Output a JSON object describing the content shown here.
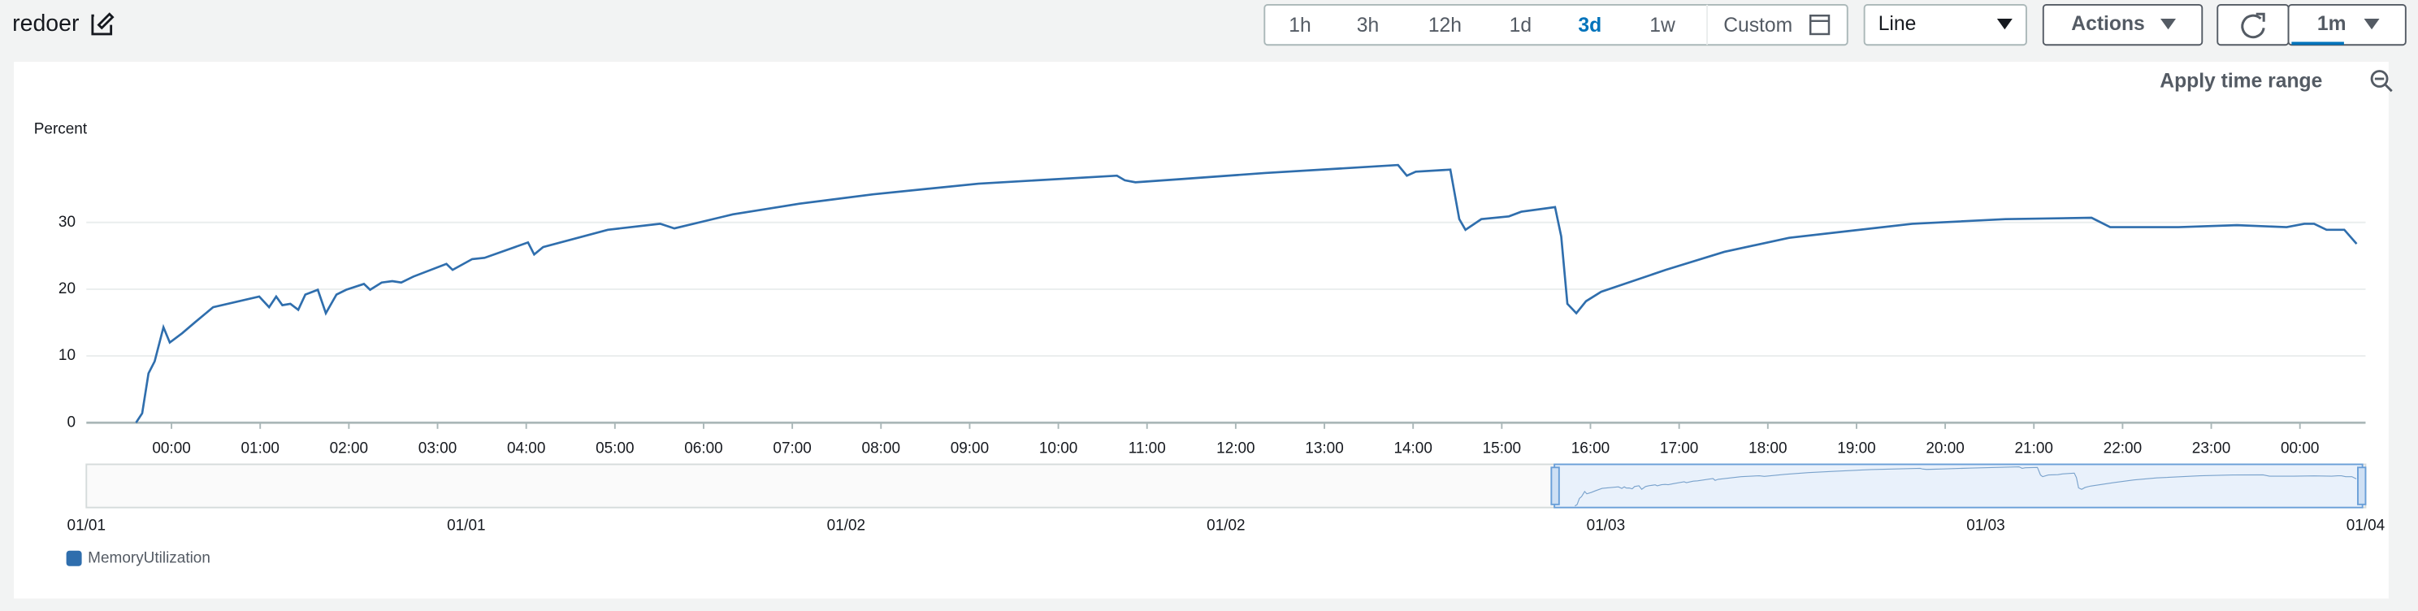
{
  "header": {
    "title": "redoer"
  },
  "toolbar": {
    "ranges": [
      "1h",
      "3h",
      "12h",
      "1d",
      "3d",
      "1w"
    ],
    "selected_range": "3d",
    "custom": "Custom",
    "view": "Line",
    "actions": "Actions",
    "refresh_interval": "1m"
  },
  "chart_data": {
    "type": "line",
    "apply_label": "Apply time range",
    "y_label": "Percent",
    "x": [
      -0.4,
      -0.33,
      -0.26,
      -0.19,
      -0.09,
      -0.02,
      0.12,
      0.26,
      0.47,
      0.99,
      1.1,
      1.18,
      1.25,
      1.34,
      1.43,
      1.51,
      1.65,
      1.74,
      1.86,
      1.97,
      2.17,
      2.24,
      2.37,
      2.49,
      2.59,
      2.73,
      3.1,
      3.17,
      3.39,
      3.53,
      4.02,
      4.09,
      4.19,
      4.92,
      5.51,
      5.67,
      6.33,
      7.08,
      7.91,
      9.1,
      10.66,
      10.75,
      10.87,
      11.39,
      12.33,
      13.83,
      13.93,
      14.03,
      14.42,
      14.52,
      14.59,
      14.77,
      15.08,
      15.22,
      15.6,
      15.67,
      15.74,
      15.84,
      15.95,
      16.12,
      16.85,
      17.51,
      18.24,
      19.63,
      20.68,
      21.65,
      21.86,
      22.63,
      23.29,
      23.85,
      24.05,
      24.16,
      24.3,
      24.5,
      24.64
    ],
    "series": [
      {
        "name": "MemoryUtilization",
        "color": "#2f6ead",
        "values": [
          0,
          1.4,
          7.4,
          9.2,
          14.3,
          12,
          13.4,
          15,
          17.3,
          18.9,
          17.3,
          18.9,
          17.6,
          17.8,
          16.9,
          19.2,
          19.9,
          16.4,
          19.2,
          19.9,
          20.8,
          19.9,
          21,
          21.2,
          21,
          21.9,
          23.8,
          22.9,
          24.5,
          24.7,
          27,
          25.2,
          26.3,
          28.9,
          29.8,
          29.1,
          31.2,
          32.8,
          34.2,
          35.8,
          37,
          36.3,
          36,
          36.5,
          37.4,
          38.6,
          37,
          37.6,
          37.9,
          30.5,
          28.9,
          30.5,
          30.9,
          31.6,
          32.3,
          27.9,
          17.8,
          16.4,
          18.2,
          19.6,
          22.9,
          25.6,
          27.7,
          29.8,
          30.5,
          30.7,
          29.3,
          29.3,
          29.6,
          29.3,
          29.8,
          29.8,
          28.9,
          28.9,
          26.8
        ]
      }
    ],
    "xlim": [
      -0.96,
      24.74
    ],
    "xticks": [
      {
        "value": 0,
        "label": "00:00"
      },
      {
        "value": 1,
        "label": "01:00"
      },
      {
        "value": 2,
        "label": "02:00"
      },
      {
        "value": 3,
        "label": "03:00"
      },
      {
        "value": 4,
        "label": "04:00"
      },
      {
        "value": 5,
        "label": "05:00"
      },
      {
        "value": 6,
        "label": "06:00"
      },
      {
        "value": 7,
        "label": "07:00"
      },
      {
        "value": 8,
        "label": "08:00"
      },
      {
        "value": 9,
        "label": "09:00"
      },
      {
        "value": 10,
        "label": "10:00"
      },
      {
        "value": 11,
        "label": "11:00"
      },
      {
        "value": 12,
        "label": "12:00"
      },
      {
        "value": 13,
        "label": "13:00"
      },
      {
        "value": 14,
        "label": "14:00"
      },
      {
        "value": 15,
        "label": "15:00"
      },
      {
        "value": 16,
        "label": "16:00"
      },
      {
        "value": 17,
        "label": "17:00"
      },
      {
        "value": 18,
        "label": "18:00"
      },
      {
        "value": 19,
        "label": "19:00"
      },
      {
        "value": 20,
        "label": "20:00"
      },
      {
        "value": 21,
        "label": "21:00"
      },
      {
        "value": 22,
        "label": "22:00"
      },
      {
        "value": 23,
        "label": "23:00"
      },
      {
        "value": 24,
        "label": "00:00"
      }
    ],
    "ylim": [
      0,
      41
    ],
    "yticks": [
      0,
      10,
      20,
      30
    ],
    "grid": true,
    "navigator_labels": [
      "01/01",
      "01/01",
      "01/02",
      "01/02",
      "01/03",
      "01/03",
      "01/04"
    ]
  }
}
